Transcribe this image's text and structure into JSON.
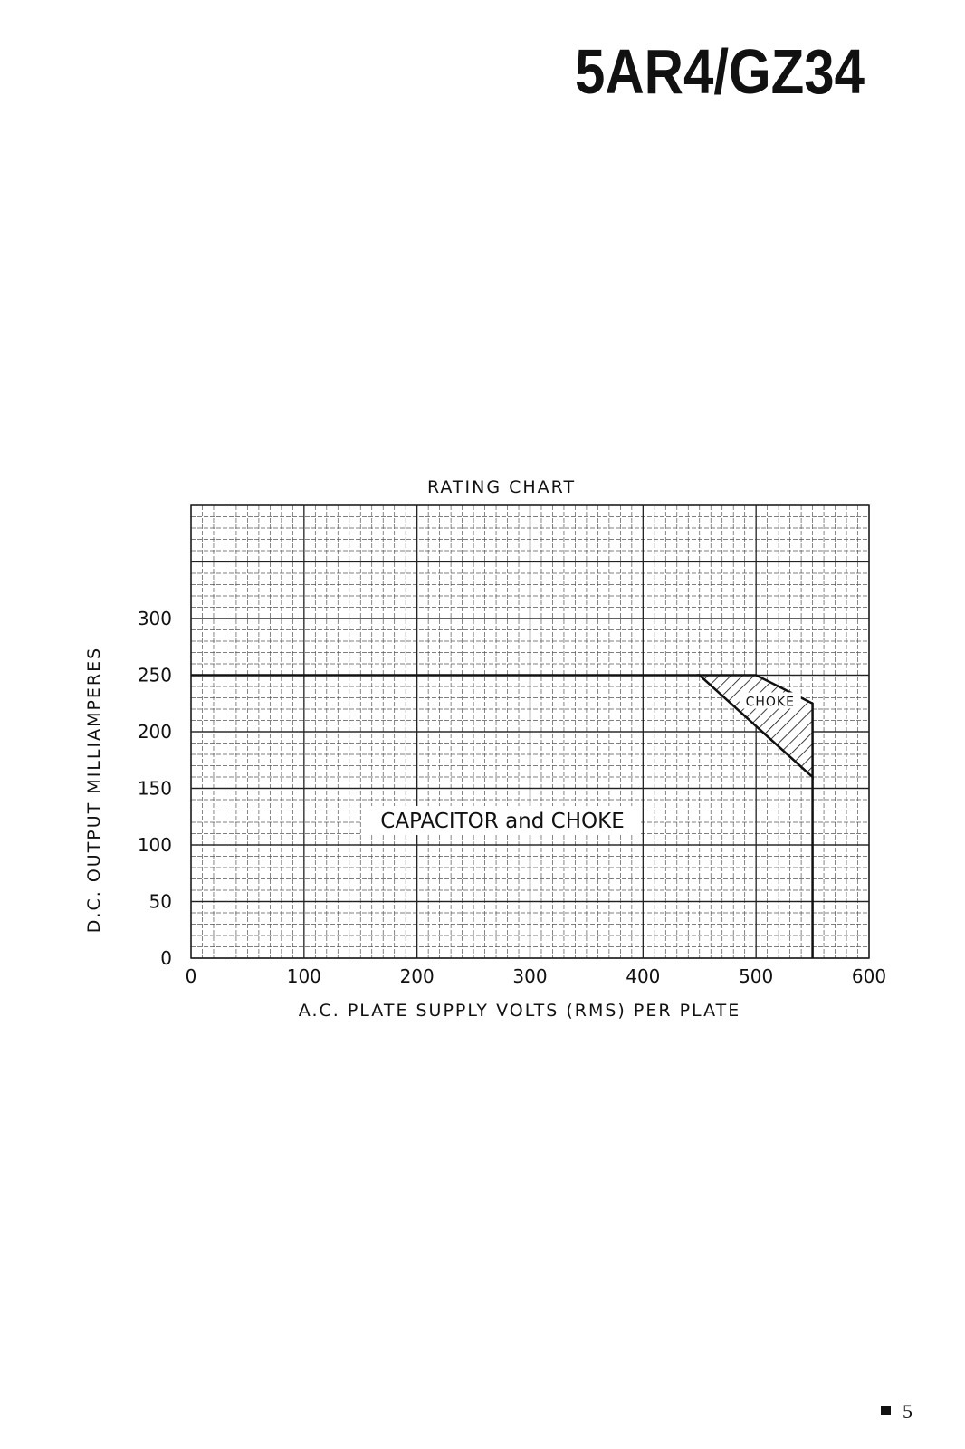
{
  "header": {
    "title": "5AR4/GZ34"
  },
  "chart_data": {
    "type": "line",
    "title": "RATING CHART",
    "x_label": "A.C. PLATE SUPPLY VOLTS (RMS) PER PLATE",
    "y_label": "D.C. OUTPUT MILLIAMPERES",
    "xlim": [
      0,
      600
    ],
    "xticks": [
      0,
      100,
      200,
      300,
      400,
      500,
      600
    ],
    "ylim": [
      0,
      400
    ],
    "yticks": [
      0,
      50,
      100,
      150,
      200,
      250,
      300
    ],
    "grid": true,
    "minor_grid_step_x": 10,
    "minor_grid_step_y": 10,
    "major_grid_step_y": 50,
    "series": [
      {
        "name": "CAPACITOR and CHOKE",
        "color": "#111111",
        "fill": "none",
        "x": [
          0,
          450,
          550,
          550
        ],
        "values": [
          250,
          250,
          160,
          0
        ]
      },
      {
        "name": "CHOKE",
        "color": "#111111",
        "fill": "hatch",
        "x": [
          450,
          500,
          550,
          550
        ],
        "values": [
          250,
          250,
          225,
          160
        ]
      }
    ]
  },
  "footer": {
    "page_number": "5"
  }
}
